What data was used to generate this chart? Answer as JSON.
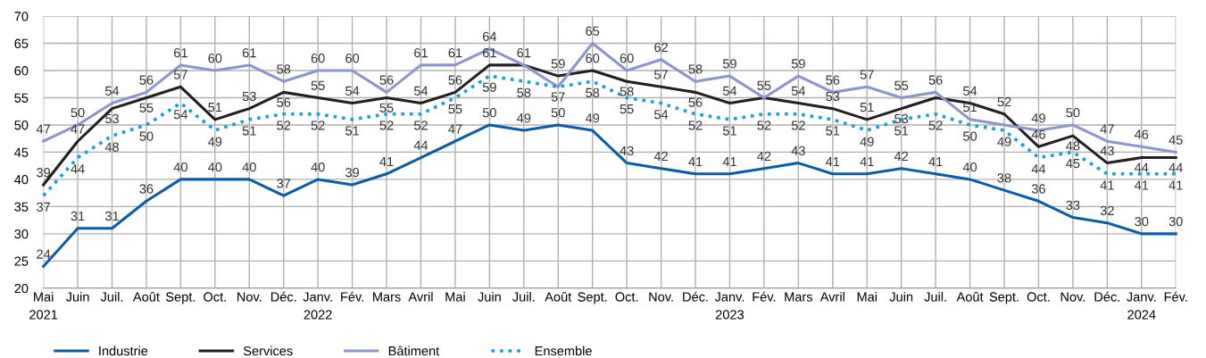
{
  "chart_data": {
    "type": "line",
    "categories": [
      "Mai\n2021",
      "Juin",
      "Juil.",
      "Août",
      "Sept.",
      "Oct.",
      "Nov.",
      "Déc.",
      "Janv.\n2022",
      "Fév.",
      "Mars",
      "Avril",
      "Mai",
      "Juin",
      "Juil.",
      "Août",
      "Sept.",
      "Oct.",
      "Nov.",
      "Déc.",
      "Janv.\n2023",
      "Fév.",
      "Mars",
      "Avril",
      "Mai",
      "Juin",
      "Juil.",
      "Août",
      "Sept.",
      "Oct.",
      "Nov.",
      "Déc.",
      "Janv.\n2024",
      "Fév."
    ],
    "series": [
      {
        "name": "Industrie",
        "color": "#0b5ca8",
        "line_style": "solid",
        "values": [
          24,
          31,
          31,
          36,
          40,
          40,
          40,
          37,
          40,
          39,
          41,
          44,
          47,
          50,
          49,
          50,
          49,
          43,
          42,
          41,
          41,
          42,
          43,
          41,
          41,
          42,
          41,
          40,
          38,
          36,
          33,
          32,
          30,
          30
        ]
      },
      {
        "name": "Services",
        "color": "#231f20",
        "line_style": "solid",
        "values": [
          39,
          47,
          53,
          55,
          57,
          51,
          53,
          56,
          55,
          54,
          55,
          54,
          56,
          61,
          61,
          59,
          60,
          58,
          57,
          56,
          54,
          55,
          54,
          53,
          51,
          53,
          55,
          54,
          52,
          46,
          48,
          43,
          44,
          44
        ],
        "value_labels": [
          "39",
          "47",
          "53",
          "55",
          "57",
          "51",
          "53",
          "56",
          "55",
          "54",
          "55",
          "54",
          "56",
          "61",
          null,
          "59",
          "60",
          "58",
          "57",
          "56",
          "54",
          null,
          "54",
          "53",
          "51",
          "53",
          null,
          "54",
          "52",
          "46",
          "48",
          "43",
          "44",
          "44"
        ]
      },
      {
        "name": "Bâtiment",
        "color": "#8c96cc",
        "line_style": "solid",
        "values": [
          47,
          50,
          54,
          56,
          61,
          60,
          61,
          58,
          60,
          60,
          56,
          61,
          61,
          64,
          61,
          57,
          65,
          60,
          62,
          58,
          59,
          55,
          59,
          56,
          57,
          55,
          56,
          51,
          50,
          49,
          50,
          47,
          46,
          45
        ],
        "value_labels": [
          "47",
          "50",
          "54",
          "56",
          "61",
          "60",
          "61",
          "58",
          "60",
          "60",
          "56",
          "61",
          "61",
          "64",
          "61",
          "57",
          "65",
          "60",
          "62",
          "58",
          "59",
          "55",
          "59",
          "56",
          "57",
          "55",
          "56",
          "51",
          null,
          "49",
          "50",
          "47",
          "46",
          "45"
        ]
      },
      {
        "name": "Ensemble",
        "color": "#1a9ed6",
        "line_style": "dotted",
        "values": [
          37,
          44,
          48,
          50,
          54,
          49,
          51,
          52,
          52,
          51,
          52,
          52,
          55,
          59,
          58,
          57,
          58,
          55,
          54,
          52,
          51,
          52,
          52,
          51,
          49,
          51,
          52,
          50,
          49,
          44,
          45,
          41,
          41,
          41
        ],
        "value_labels": [
          "37",
          "44",
          "48",
          "50",
          "54",
          "49",
          "51",
          "52",
          "52",
          "51",
          "52",
          "52",
          "55",
          "59",
          "58",
          null,
          "58",
          "55",
          "54",
          "52",
          "51",
          "52",
          "52",
          "51",
          "49",
          "51",
          "52",
          "50",
          "49",
          "44",
          "45",
          "41",
          "41",
          "41"
        ]
      }
    ],
    "ylim": [
      20,
      70
    ],
    "yticks": [
      20,
      25,
      30,
      35,
      40,
      45,
      50,
      55,
      60,
      65,
      70
    ],
    "data_labels": true,
    "grid": true,
    "legend": "bottom left",
    "marker": "none"
  }
}
